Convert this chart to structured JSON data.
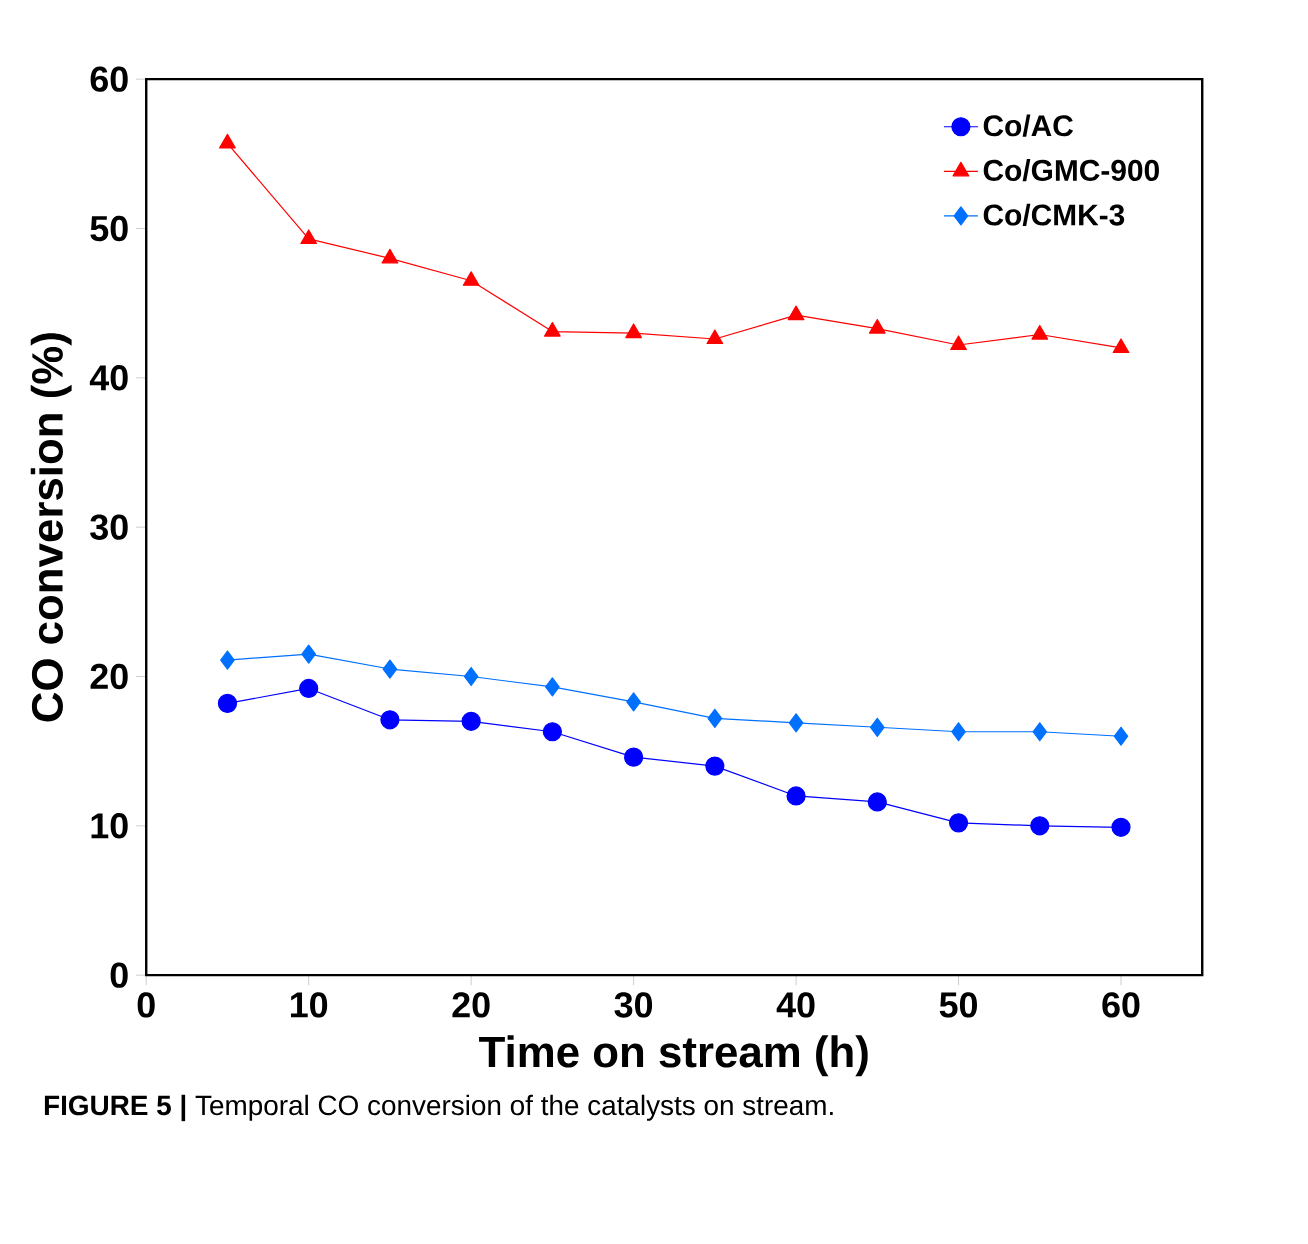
{
  "chart_data": {
    "type": "line",
    "xlabel": "Time on stream (h)",
    "ylabel": "CO conversion (%)",
    "x": [
      5,
      10,
      15,
      20,
      25,
      30,
      35,
      40,
      45,
      50,
      55,
      60
    ],
    "series": [
      {
        "name": "Co/AC",
        "color": "#0000ff",
        "marker": "circle",
        "values": [
          18.2,
          19.2,
          17.1,
          17.0,
          16.3,
          14.6,
          14.0,
          12.0,
          11.6,
          10.2,
          10.0,
          9.9
        ]
      },
      {
        "name": "Co/GMC-900",
        "color": "#ff0000",
        "marker": "triangle",
        "values": [
          55.7,
          49.3,
          48.0,
          46.5,
          43.1,
          43.0,
          42.6,
          44.2,
          43.3,
          42.2,
          42.9,
          42.0
        ]
      },
      {
        "name": "Co/CMK-3",
        "color": "#0070ff",
        "marker": "diamond",
        "values": [
          21.1,
          21.5,
          20.5,
          20.0,
          19.3,
          18.3,
          17.2,
          16.9,
          16.6,
          16.3,
          16.3,
          16.0
        ]
      }
    ],
    "xlim": [
      0,
      65
    ],
    "xticks": [
      0,
      10,
      20,
      30,
      40,
      50,
      60
    ],
    "ylim": [
      0,
      60
    ],
    "yticks": [
      0,
      10,
      20,
      30,
      40,
      50,
      60
    ],
    "grid": false,
    "legend": "top right",
    "line_style": "solid",
    "annotations": [
      "**FIGURE 5 |** Temporal CO conversion of the catalysts on stream."
    ]
  }
}
